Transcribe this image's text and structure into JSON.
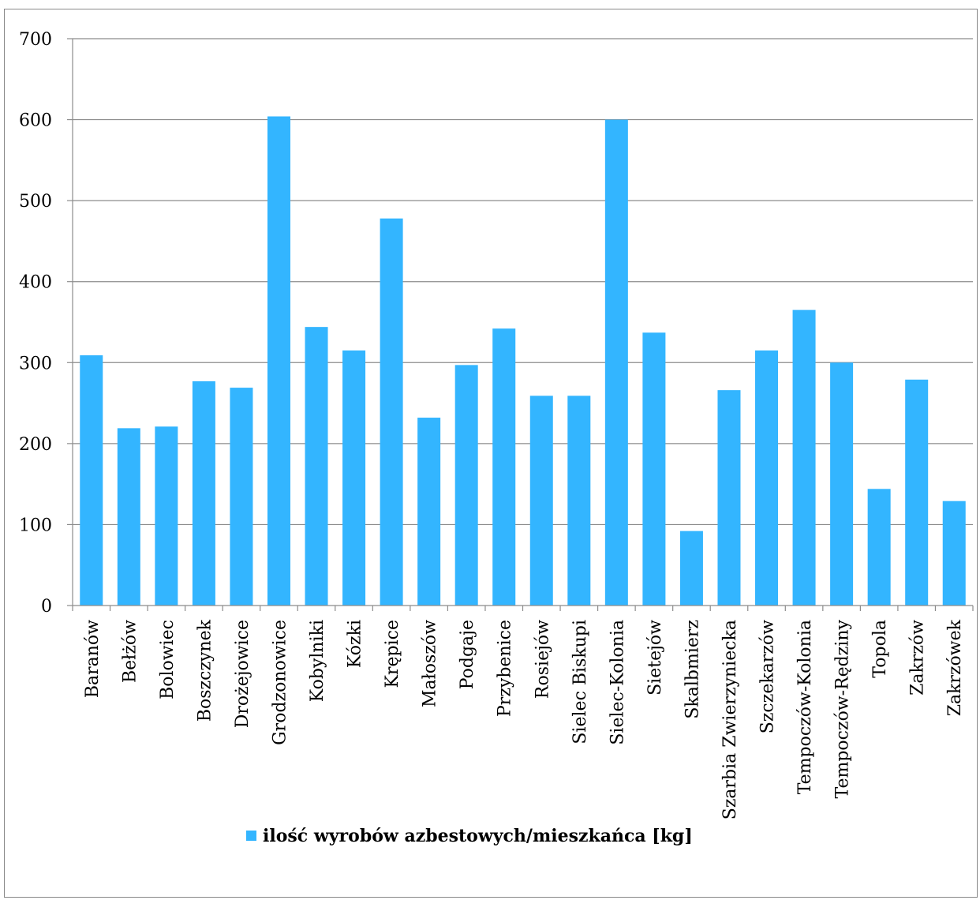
{
  "chart_data": {
    "type": "bar",
    "categories": [
      "Baranów",
      "Bełżów",
      "Bolowiec",
      "Boszczynek",
      "Drożejowice",
      "Grodzonowice",
      "Kobylniki",
      "Kózki",
      "Krępice",
      "Małoszów",
      "Podgaje",
      "Przybenice",
      "Rosiejów",
      "Sielec Biskupi",
      "Sielec-Kolonia",
      "Sietejów",
      "Skalbmierz",
      "Szarbia Zwierzyniecka",
      "Szczekarzów",
      "Tempoczów-Kolonia",
      "Tempoczów-Rędziny",
      "Topola",
      "Zakrzów",
      "Zakrzówek"
    ],
    "series": [
      {
        "name": "ilość wyrobów azbestowych/mieszkańca [kg]",
        "values": [
          309,
          219,
          221,
          277,
          269,
          604,
          344,
          315,
          478,
          232,
          297,
          342,
          259,
          259,
          600,
          337,
          92,
          266,
          315,
          365,
          300,
          144,
          279,
          129
        ],
        "color": "#33B5FF"
      }
    ],
    "ylim": [
      0,
      700
    ],
    "yticks": [
      "0",
      "100",
      "200",
      "300",
      "400",
      "500",
      "600",
      "700"
    ],
    "grid": true,
    "legend_position": "bottom"
  }
}
